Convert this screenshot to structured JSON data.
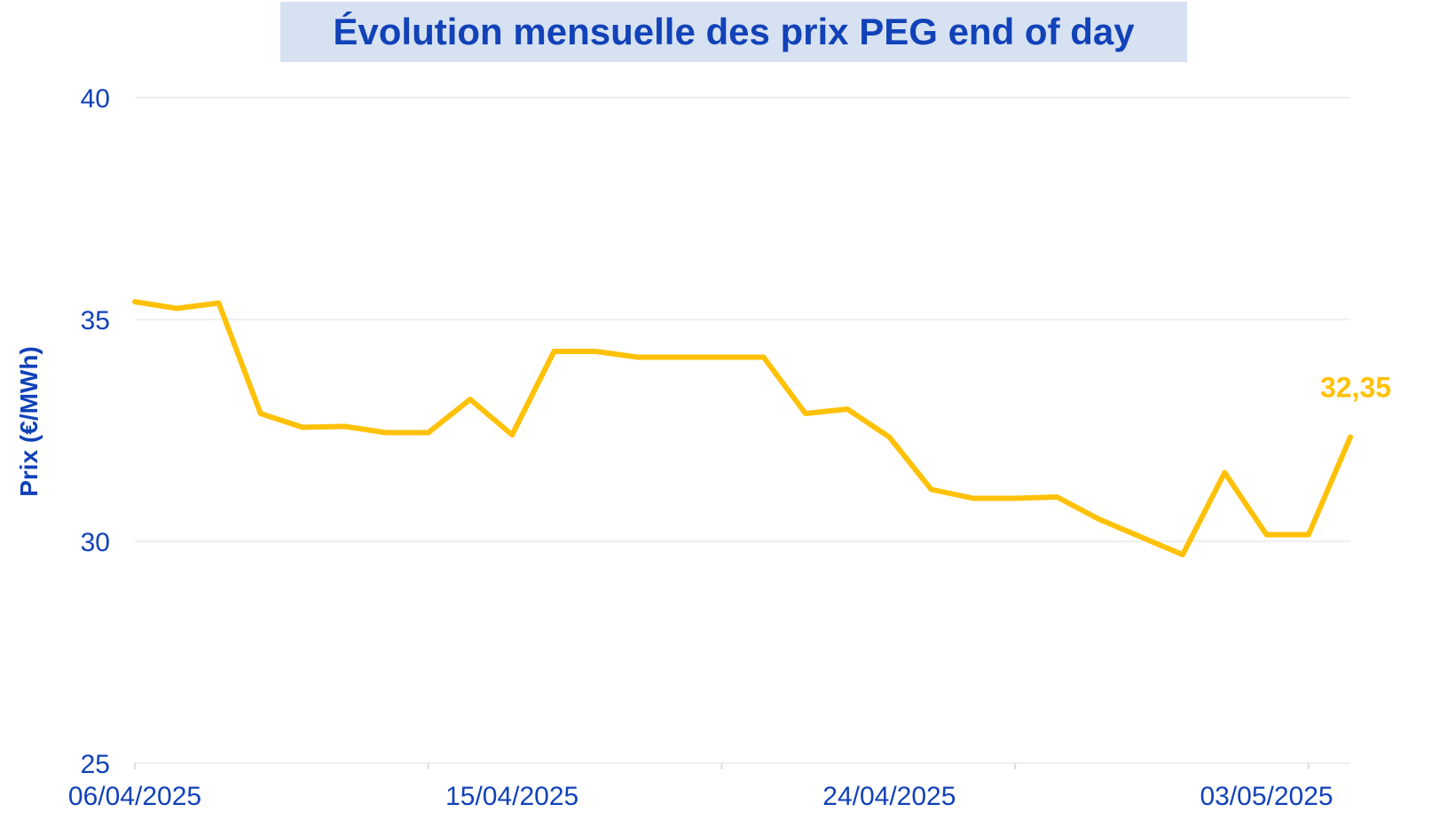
{
  "chart_data": {
    "type": "line",
    "title": "Évolution mensuelle des prix PEG end of day",
    "ylabel": "Prix (€/MWh)",
    "ylim": [
      25,
      40
    ],
    "yticks": [
      "25",
      "30",
      "35",
      "40"
    ],
    "xlim": [
      "2025-04-06",
      "2025-05-05"
    ],
    "xtick_dates": [
      "2025-04-06",
      "2025-04-13",
      "2025-04-20",
      "2025-04-27",
      "2025-05-04"
    ],
    "xtick_labels": [
      "06/04/2025",
      "15/04/2025",
      "24/04/2025",
      "03/05/2025"
    ],
    "xtick_label_dates": [
      "2025-04-06",
      "2025-04-15",
      "2025-04-24",
      "2025-05-03"
    ],
    "grid": true,
    "series": [
      {
        "color": "#ffc107",
        "x": [
          "2025-04-06",
          "2025-04-07",
          "2025-04-08",
          "2025-04-09",
          "2025-04-10",
          "2025-04-11",
          "2025-04-12",
          "2025-04-13",
          "2025-04-14",
          "2025-04-15",
          "2025-04-16",
          "2025-04-17",
          "2025-04-18",
          "2025-04-19",
          "2025-04-20",
          "2025-04-21",
          "2025-04-22",
          "2025-04-23",
          "2025-04-24",
          "2025-04-25",
          "2025-04-26",
          "2025-04-27",
          "2025-04-28",
          "2025-04-29",
          "2025-04-30",
          "2025-05-01",
          "2025-05-02",
          "2025-05-03",
          "2025-05-04",
          "2025-05-05"
        ],
        "values": [
          35.4,
          35.25,
          35.37,
          32.88,
          32.57,
          32.59,
          32.45,
          32.45,
          33.2,
          32.4,
          34.28,
          34.28,
          34.15,
          34.15,
          34.15,
          34.15,
          32.88,
          32.98,
          32.35,
          31.17,
          30.97,
          30.97,
          31.0,
          30.5,
          30.1,
          29.7,
          31.55,
          30.15,
          30.15,
          32.35
        ]
      }
    ],
    "annotations": [
      {
        "x": "2025-05-05",
        "value": 32.35,
        "text": "32,35"
      }
    ]
  }
}
